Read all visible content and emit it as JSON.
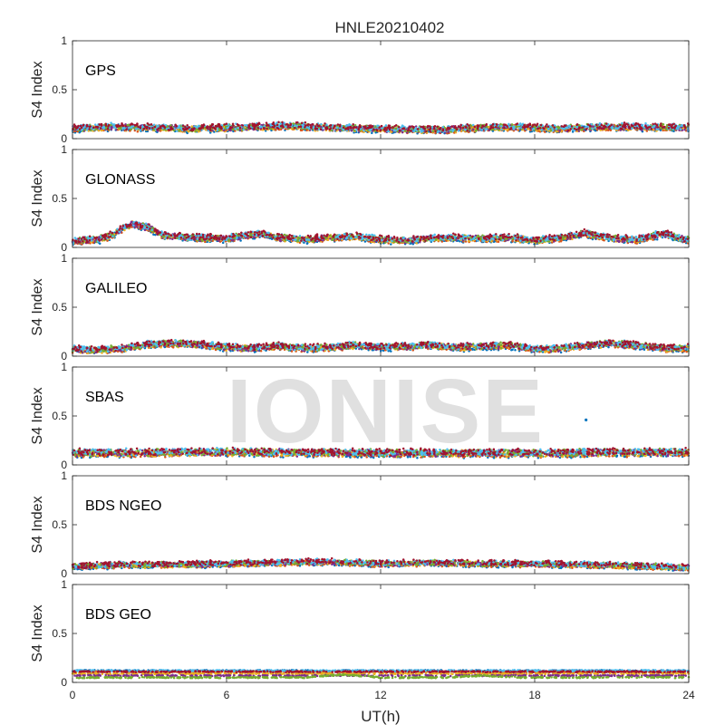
{
  "figure": {
    "title": "HNLE20210402",
    "xlabel": "UT(h)",
    "watermark": "IONISE"
  },
  "chart_data": {
    "type": "scatter",
    "title": "HNLE20210402",
    "xlabel": "UT(h)",
    "xlim": [
      0,
      24
    ],
    "xticks": [
      0,
      6,
      12,
      18,
      24
    ],
    "series_colors": [
      "#0072BD",
      "#D95319",
      "#EDB120",
      "#7E2F8E",
      "#77AC30",
      "#4DBEEE",
      "#A2142F"
    ],
    "panels": [
      {
        "name": "GPS",
        "ylabel": "S4 Index",
        "ylim": [
          0,
          1
        ],
        "yticks": [
          0,
          0.5,
          1
        ],
        "grid": false,
        "trend": [
          [
            0,
            0.1
          ],
          [
            1.5,
            0.12
          ],
          [
            3,
            0.11
          ],
          [
            4.5,
            0.1
          ],
          [
            6,
            0.11
          ],
          [
            7.5,
            0.12
          ],
          [
            8.5,
            0.13
          ],
          [
            10,
            0.11
          ],
          [
            12,
            0.1
          ],
          [
            14,
            0.09
          ],
          [
            16,
            0.11
          ],
          [
            17.5,
            0.12
          ],
          [
            19,
            0.1
          ],
          [
            20.5,
            0.12
          ],
          [
            22,
            0.12
          ],
          [
            24,
            0.11
          ]
        ],
        "spread": 0.035
      },
      {
        "name": "GLONASS",
        "ylabel": "S4 Index",
        "ylim": [
          0,
          1
        ],
        "yticks": [
          0,
          0.5,
          1
        ],
        "grid": false,
        "trend": [
          [
            0,
            0.06
          ],
          [
            1,
            0.08
          ],
          [
            1.5,
            0.12
          ],
          [
            2.3,
            0.24
          ],
          [
            3,
            0.2
          ],
          [
            3.5,
            0.12
          ],
          [
            4.5,
            0.1
          ],
          [
            6,
            0.09
          ],
          [
            7.3,
            0.14
          ],
          [
            8,
            0.1
          ],
          [
            9,
            0.08
          ],
          [
            10,
            0.1
          ],
          [
            11,
            0.11
          ],
          [
            12,
            0.08
          ],
          [
            13,
            0.07
          ],
          [
            14.5,
            0.1
          ],
          [
            16,
            0.09
          ],
          [
            17,
            0.1
          ],
          [
            18,
            0.07
          ],
          [
            19,
            0.1
          ],
          [
            20,
            0.14
          ],
          [
            21,
            0.09
          ],
          [
            22,
            0.08
          ],
          [
            23,
            0.14
          ],
          [
            24,
            0.07
          ]
        ],
        "spread": 0.035
      },
      {
        "name": "GALILEO",
        "ylabel": "S4 Index",
        "ylim": [
          0,
          1
        ],
        "yticks": [
          0,
          0.5,
          1
        ],
        "grid": false,
        "trend": [
          [
            0,
            0.07
          ],
          [
            1,
            0.06
          ],
          [
            2,
            0.08
          ],
          [
            3,
            0.12
          ],
          [
            4,
            0.13
          ],
          [
            5,
            0.12
          ],
          [
            6,
            0.09
          ],
          [
            7,
            0.08
          ],
          [
            8,
            0.1
          ],
          [
            9,
            0.08
          ],
          [
            10,
            0.09
          ],
          [
            11,
            0.11
          ],
          [
            12,
            0.09
          ],
          [
            13,
            0.1
          ],
          [
            14,
            0.11
          ],
          [
            15,
            0.09
          ],
          [
            16,
            0.1
          ],
          [
            17,
            0.11
          ],
          [
            18,
            0.07
          ],
          [
            19,
            0.08
          ],
          [
            20,
            0.11
          ],
          [
            21,
            0.13
          ],
          [
            22,
            0.11
          ],
          [
            23,
            0.08
          ],
          [
            24,
            0.08
          ]
        ],
        "spread": 0.035
      },
      {
        "name": "SBAS",
        "ylabel": "S4 Index",
        "ylim": [
          0,
          1
        ],
        "yticks": [
          0,
          0.5,
          1
        ],
        "grid": false,
        "trend": [
          [
            0,
            0.12
          ],
          [
            6,
            0.13
          ],
          [
            12,
            0.12
          ],
          [
            18,
            0.12
          ],
          [
            24,
            0.13
          ]
        ],
        "spread": 0.04,
        "outlier": [
          20.0,
          0.46
        ]
      },
      {
        "name": "BDS NGEO",
        "ylabel": "S4 Index",
        "ylim": [
          0,
          1
        ],
        "yticks": [
          0,
          0.5,
          1
        ],
        "grid": false,
        "trend": [
          [
            0,
            0.07
          ],
          [
            2,
            0.09
          ],
          [
            4,
            0.09
          ],
          [
            6,
            0.1
          ],
          [
            8,
            0.11
          ],
          [
            10,
            0.12
          ],
          [
            12,
            0.1
          ],
          [
            14,
            0.11
          ],
          [
            16,
            0.1
          ],
          [
            18,
            0.1
          ],
          [
            20,
            0.09
          ],
          [
            22,
            0.08
          ],
          [
            24,
            0.06
          ]
        ],
        "spread": 0.03
      },
      {
        "name": "BDS GEO",
        "ylabel": "S4 Index",
        "ylim": [
          0,
          1
        ],
        "yticks": [
          0,
          0.5,
          1
        ],
        "grid": false,
        "levels": [
          0.12,
          0.11,
          0.09,
          0.07,
          0.05
        ],
        "bump": [
          [
            10.5,
            0.15
          ],
          [
            16,
            0.14
          ]
        ]
      }
    ]
  }
}
